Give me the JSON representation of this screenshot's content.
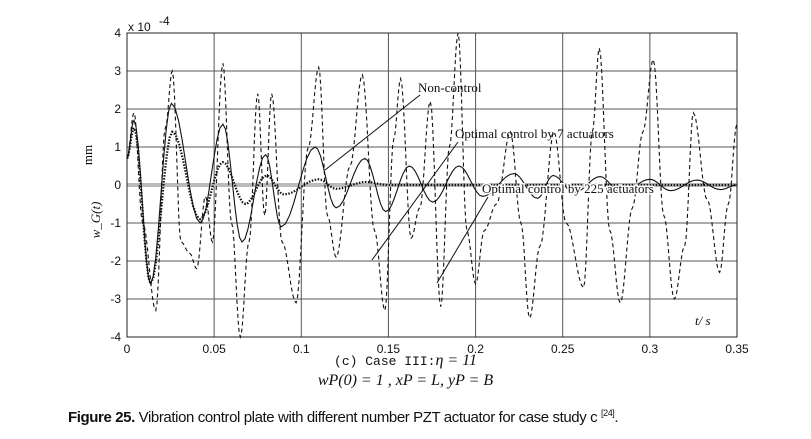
{
  "chart_data": {
    "type": "line",
    "title": "",
    "xlabel": "t/ s",
    "ylabel": "w_G(t)",
    "ylabel_unit": "mm",
    "y_scale_label": "x 10^-4",
    "xlim": [
      0,
      0.35
    ],
    "ylim": [
      -4,
      4
    ],
    "xticks": [
      "0",
      "0.05",
      "0.1",
      "0.15",
      "0.2",
      "0.25",
      "0.3",
      "0.35"
    ],
    "yticks": [
      "4",
      "3",
      "2",
      "1",
      "0",
      "-1",
      "-2",
      "-3",
      "-4"
    ],
    "grid": true,
    "annotations": [
      "Non-control",
      "Optimal control by 7 actuators",
      "Optimal control by 225 actuators"
    ],
    "series": [
      {
        "name": "Non-control",
        "style": "dashed",
        "x": [
          0,
          0.004,
          0.009,
          0.0165,
          0.022,
          0.026,
          0.031,
          0.036,
          0.04,
          0.045,
          0.049,
          0.055,
          0.06,
          0.065,
          0.07,
          0.075,
          0.079,
          0.083,
          0.089,
          0.097,
          0.104,
          0.11,
          0.115,
          0.12,
          0.128,
          0.135,
          0.142,
          0.148,
          0.153,
          0.157,
          0.163,
          0.168,
          0.174,
          0.18,
          0.185,
          0.19,
          0.195,
          0.2,
          0.205,
          0.212,
          0.22,
          0.226,
          0.231,
          0.237,
          0.245,
          0.252,
          0.262,
          0.267,
          0.271,
          0.277,
          0.283,
          0.29,
          0.296,
          0.302,
          0.308,
          0.314,
          0.32,
          0.325,
          0.333,
          0.34,
          0.345,
          0.35
        ],
        "y": [
          0.7,
          1.9,
          -1.0,
          -3.3,
          1.5,
          3.0,
          -1.5,
          -1.8,
          -2.2,
          -0.3,
          -1.5,
          3.2,
          -1.0,
          -4.0,
          -1.5,
          2.4,
          -0.8,
          2.4,
          -1.5,
          -3.1,
          1.0,
          3.1,
          -0.8,
          -1.9,
          0.5,
          2.9,
          -1.2,
          -3.3,
          1.2,
          2.8,
          -1.4,
          -0.6,
          2.2,
          -3.2,
          1.0,
          4.0,
          -1.2,
          -2.6,
          -1.2,
          -0.5,
          1.4,
          -1.0,
          -3.5,
          -1.6,
          1.4,
          -1.0,
          -2.7,
          1.4,
          3.6,
          -1.2,
          -3.1,
          -0.6,
          1.4,
          3.3,
          -0.8,
          -3.0,
          -1.6,
          1.9,
          -0.4,
          -2.3,
          -0.5,
          1.6
        ]
      },
      {
        "name": "Optimal control by 7 actuators",
        "style": "solid",
        "x": [
          0,
          0.004,
          0.0135,
          0.0255,
          0.042,
          0.055,
          0.066,
          0.0795,
          0.0885,
          0.108,
          0.12,
          0.1365,
          0.1485,
          0.162,
          0.1755,
          0.1905,
          0.204,
          0.222,
          0.2355,
          0.2445,
          0.2565,
          0.2715,
          0.2835,
          0.3,
          0.312,
          0.327,
          0.3405,
          0.35
        ],
        "y": [
          0.7,
          1.7,
          -2.6,
          2.15,
          -1.0,
          1.6,
          -1.5,
          0.8,
          -1.1,
          1.0,
          -0.6,
          0.7,
          -0.7,
          0.5,
          -0.45,
          0.5,
          -0.3,
          0.3,
          -0.35,
          0.25,
          -0.2,
          0.22,
          -0.2,
          0.15,
          -0.15,
          0.13,
          -0.12,
          0
        ]
      },
      {
        "name": "Optimal control by 225 actuators",
        "style": "dotted",
        "x": [
          0,
          0.004,
          0.0135,
          0.026,
          0.042,
          0.055,
          0.068,
          0.08,
          0.09,
          0.11,
          0.12,
          0.137,
          0.15,
          0.35
        ],
        "y": [
          0.7,
          1.5,
          -2.6,
          1.4,
          -0.9,
          0.6,
          -0.5,
          0.25,
          -0.25,
          0.15,
          -0.1,
          0.08,
          0,
          0
        ]
      }
    ]
  },
  "figure": {
    "case_label": "(c) Case III:",
    "case_eta": "η = 11",
    "conditions": "wP(0) = 1 , xP = L, yP = B",
    "caption_bold": "Figure 25.",
    "caption_text": " Vibration control plate with different number PZT actuator for case study c ",
    "caption_ref": "[24]",
    "caption_end": "."
  }
}
